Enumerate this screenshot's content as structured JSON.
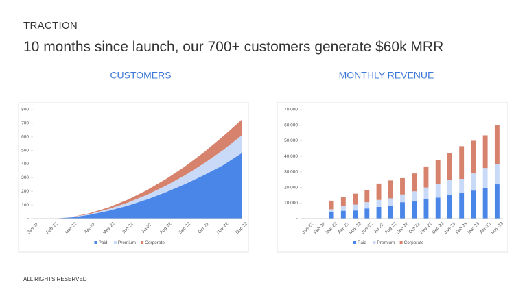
{
  "header": {
    "section": "TRACTION",
    "headline": "10 months since launch, our 700+ customers generate $60k MRR"
  },
  "footer": "ALL RIGHTS RESERVED",
  "chart_data": [
    {
      "type": "area",
      "title": "CUSTOMERS",
      "stacked": true,
      "categories": [
        "Jan-22",
        "Feb-22",
        "Mar-22",
        "Apr-22",
        "May-22",
        "Jun-22",
        "Jul-22",
        "Aug-22",
        "Sep-22",
        "Oct-22",
        "Nov-22",
        "Dec-22"
      ],
      "series": [
        {
          "name": "Paid",
          "color": "#4a86e8",
          "values": [
            0,
            0,
            8,
            28,
            58,
            95,
            140,
            193,
            252,
            318,
            390,
            480
          ]
        },
        {
          "name": "Premium",
          "color": "#c9daf8",
          "values": [
            0,
            0,
            2,
            6,
            13,
            22,
            34,
            48,
            65,
            86,
            110,
            130
          ]
        },
        {
          "name": "Corporate",
          "color": "#d6826c",
          "values": [
            0,
            0,
            1,
            6,
            12,
            22,
            34,
            48,
            64,
            81,
            101,
            115
          ]
        }
      ],
      "ylim": [
        0,
        800
      ],
      "yticks": [
        {
          "value": 0,
          "label": "-"
        },
        100,
        200,
        300,
        400,
        500,
        600,
        700,
        800
      ],
      "grid": false,
      "legend": "bottom"
    },
    {
      "type": "bar",
      "title": "MONTHLY REVENUE",
      "stacked": true,
      "categories": [
        "Jan-22",
        "Feb-22",
        "Mar-22",
        "Apr-22",
        "May-22",
        "Jun-22",
        "Jul-22",
        "Aug-22",
        "Sep-22",
        "Oct-22",
        "Nov-22",
        "Dec-22",
        "Jan-23",
        "Feb-23",
        "Mar-23",
        "Apr-23",
        "May-23"
      ],
      "series": [
        {
          "name": "Paid",
          "color": "#4a86e8",
          "values": [
            0,
            0,
            4500,
            5000,
            5200,
            6500,
            7500,
            8000,
            10500,
            11000,
            12500,
            13500,
            15000,
            16500,
            18000,
            19500,
            22000
          ]
        },
        {
          "name": "Premium",
          "color": "#c9daf8",
          "values": [
            0,
            0,
            1500,
            3000,
            3800,
            4000,
            4500,
            5000,
            5000,
            6500,
            7500,
            8500,
            10000,
            9000,
            11000,
            13000,
            13000
          ]
        },
        {
          "name": "Corporate",
          "color": "#d6826c",
          "values": [
            0,
            0,
            5500,
            6000,
            7000,
            8000,
            10500,
            11500,
            10500,
            11500,
            13500,
            15500,
            17000,
            21000,
            21000,
            21000,
            25000
          ]
        }
      ],
      "ylim": [
        0,
        70000
      ],
      "yticks": [
        {
          "value": 0,
          "label": "-"
        },
        {
          "value": 10000,
          "label": "10,000"
        },
        {
          "value": 20000,
          "label": "20,000"
        },
        {
          "value": 30000,
          "label": "30,000"
        },
        {
          "value": 40000,
          "label": "40,000"
        },
        {
          "value": 50000,
          "label": "50,000"
        },
        {
          "value": 60000,
          "label": "60,000"
        },
        {
          "value": 70000,
          "label": "70,000"
        }
      ],
      "grid": false,
      "legend": "bottom"
    }
  ]
}
